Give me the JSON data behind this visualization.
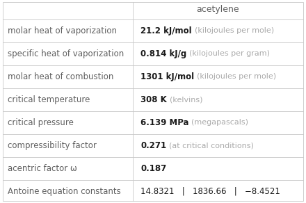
{
  "title": "acetylene",
  "rows": [
    {
      "label": "molar heat of vaporization",
      "value_bold": "21.2 kJ/mol",
      "value_light": "(kilojoules per mole)"
    },
    {
      "label": "specific heat of vaporization",
      "value_bold": "0.814 kJ/g",
      "value_light": "(kilojoules per gram)"
    },
    {
      "label": "molar heat of combustion",
      "value_bold": "1301 kJ/mol",
      "value_light": "(kilojoules per mole)"
    },
    {
      "label": "critical temperature",
      "value_bold": "308 K",
      "value_light": "(kelvins)"
    },
    {
      "label": "critical pressure",
      "value_bold": "6.139 MPa",
      "value_light": "(megapascals)"
    },
    {
      "label": "compressibility factor",
      "value_bold": "0.271",
      "value_light": "(at critical conditions)"
    },
    {
      "label": "acentric factor ω",
      "value_bold": "0.187",
      "value_light": ""
    },
    {
      "label": "Antoine equation constants",
      "value_bold": "14.8321   |   1836.66   |   −8.4521",
      "value_light": ""
    }
  ],
  "col_split": 0.435,
  "background_color": "#ffffff",
  "border_color": "#c8c8c8",
  "label_color": "#606060",
  "value_bold_color": "#1a1a1a",
  "value_light_color": "#aaaaaa",
  "title_color": "#606060",
  "font_size": 8.5,
  "title_font_size": 9.0,
  "label_font": "DejaVu Sans",
  "value_font": "DejaVu Sans"
}
